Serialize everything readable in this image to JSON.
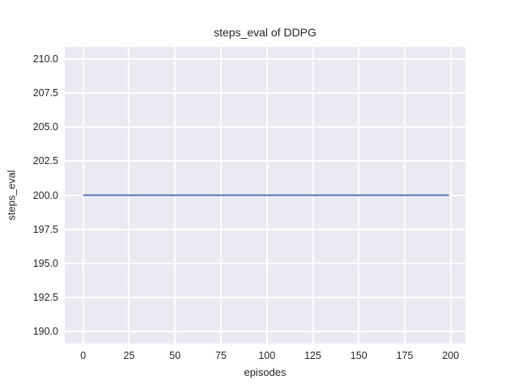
{
  "figure": {
    "background_color": "#ffffff"
  },
  "chart_data": {
    "type": "line",
    "title": "steps_eval of DDPG",
    "xlabel": "episodes",
    "ylabel": "steps_eval",
    "xlim": [
      -10,
      208
    ],
    "ylim": [
      189.1,
      210.9
    ],
    "x_ticks": [
      0,
      25,
      50,
      75,
      100,
      125,
      150,
      175,
      200
    ],
    "x_tick_labels": [
      "0",
      "25",
      "50",
      "75",
      "100",
      "125",
      "150",
      "175",
      "200"
    ],
    "y_ticks": [
      190.0,
      192.5,
      195.0,
      197.5,
      200.0,
      202.5,
      205.0,
      207.5,
      210.0
    ],
    "y_tick_labels": [
      "190.0",
      "192.5",
      "195.0",
      "197.5",
      "200.0",
      "202.5",
      "205.0",
      "207.5",
      "210.0"
    ],
    "grid": true,
    "legend_position": "none",
    "plot_background_color": "#EAEAF2",
    "grid_color": "#FFFFFF",
    "text_color": "#262626",
    "series": [
      {
        "name": "DDPG",
        "color": "#4C72B0",
        "line_width": 2,
        "description": "constant value 200 for all episodes",
        "x": [
          0,
          199
        ],
        "values": [
          200,
          200
        ]
      }
    ]
  }
}
